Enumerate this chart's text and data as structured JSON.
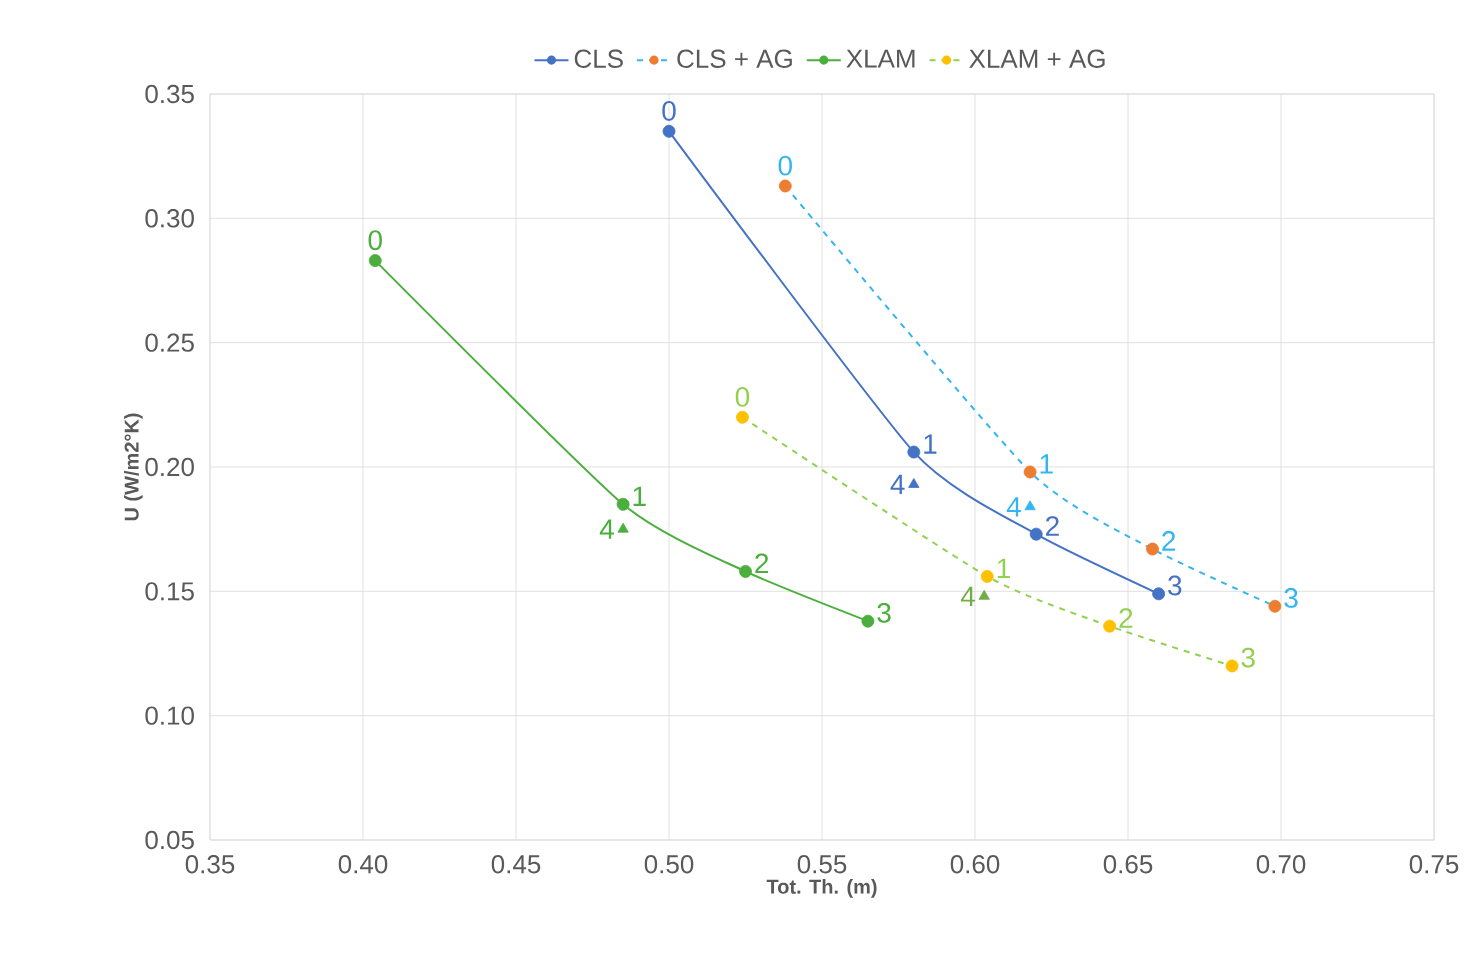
{
  "chart_data": {
    "type": "line",
    "xlabel": "Tot. Th. (m)",
    "ylabel": "U (W/m2°K)",
    "xlim": [
      0.35,
      0.75
    ],
    "xticks": [
      {
        "value": 0.35,
        "label": "0.35"
      },
      {
        "value": 0.4,
        "label": "0.40"
      },
      {
        "value": 0.45,
        "label": "0.45"
      },
      {
        "value": 0.5,
        "label": "0.50"
      },
      {
        "value": 0.55,
        "label": "0.55"
      },
      {
        "value": 0.6,
        "label": "0.60"
      },
      {
        "value": 0.65,
        "label": "0.65"
      },
      {
        "value": 0.7,
        "label": "0.70"
      },
      {
        "value": 0.75,
        "label": "0.75"
      }
    ],
    "ylim": [
      0.05,
      0.35
    ],
    "yticks": [
      {
        "value": 0.05,
        "label": "0.05"
      },
      {
        "value": 0.1,
        "label": "0.10"
      },
      {
        "value": 0.15,
        "label": "0.15"
      },
      {
        "value": 0.2,
        "label": "0.20"
      },
      {
        "value": 0.25,
        "label": "0.25"
      },
      {
        "value": 0.3,
        "label": "0.30"
      },
      {
        "value": 0.35,
        "label": "0.35"
      }
    ],
    "grid": true,
    "legend": "top",
    "series": [
      {
        "name": "CLS",
        "marker": "circle",
        "line_style": "solid",
        "color": "#4472c4",
        "colors": [
          "#4472c4",
          "#4472c4",
          "#4472c4",
          "#4472c4"
        ],
        "x": [
          0.5,
          0.58,
          0.62,
          0.66
        ],
        "values": [
          0.335,
          0.206,
          0.173,
          0.149
        ]
      },
      {
        "name": "CLS + AG",
        "marker": "circle",
        "line_style": "dashed",
        "color": "#33b5f0",
        "colors": [
          "#ed7d31",
          "#ed7d31",
          "#ed7d31",
          "#ed7d31"
        ],
        "x": [
          0.538,
          0.618,
          0.658,
          0.698
        ],
        "values": [
          0.313,
          0.198,
          0.167,
          0.144
        ]
      },
      {
        "name": "XLAM",
        "marker": "circle",
        "line_style": "solid",
        "color": "#4aaf3c",
        "colors": [
          "#4aaf3c",
          "#4aaf3c",
          "#4aaf3c",
          "#4aaf3c"
        ],
        "x": [
          0.404,
          0.485,
          0.525,
          0.565
        ],
        "values": [
          0.283,
          0.185,
          0.158,
          0.138
        ]
      },
      {
        "name": "XLAM + AG",
        "marker": "circle",
        "line_style": "dashed",
        "color": "#92d050",
        "colors": [
          "#ffc000",
          "#ffc000",
          "#ffc000",
          "#ffc000"
        ],
        "x": [
          0.524,
          0.604,
          0.644,
          0.684
        ],
        "values": [
          0.22,
          0.156,
          0.136,
          0.12
        ]
      },
      {
        "type": "scatter",
        "marker": "triangle",
        "color": "#4472c4",
        "x": [
          0.58
        ],
        "values": [
          0.193
        ]
      },
      {
        "type": "scatter",
        "marker": "triangle",
        "color": "#33b5f0",
        "x": [
          0.618
        ],
        "values": [
          0.184
        ]
      },
      {
        "type": "scatter",
        "marker": "triangle",
        "color": "#4aaf3c",
        "x": [
          0.485
        ],
        "values": [
          0.175
        ]
      },
      {
        "type": "scatter",
        "marker": "triangle",
        "color": "#70ad47",
        "x": [
          0.603
        ],
        "values": [
          0.148
        ]
      }
    ],
    "annotations": [
      {
        "text": "0",
        "x": 0.5,
        "y": 0.335
      },
      {
        "text": "1",
        "x": 0.58,
        "y": 0.206
      },
      {
        "text": "2",
        "x": 0.62,
        "y": 0.173
      },
      {
        "text": "3",
        "x": 0.66,
        "y": 0.149
      },
      {
        "text": "0",
        "x": 0.538,
        "y": 0.313
      },
      {
        "text": "1",
        "x": 0.618,
        "y": 0.198
      },
      {
        "text": "2",
        "x": 0.658,
        "y": 0.167
      },
      {
        "text": "3",
        "x": 0.698,
        "y": 0.144
      },
      {
        "text": "0",
        "x": 0.404,
        "y": 0.283
      },
      {
        "text": "1",
        "x": 0.485,
        "y": 0.185
      },
      {
        "text": "2",
        "x": 0.525,
        "y": 0.158
      },
      {
        "text": "3",
        "x": 0.565,
        "y": 0.138
      },
      {
        "text": "0",
        "x": 0.524,
        "y": 0.22
      },
      {
        "text": "1",
        "x": 0.604,
        "y": 0.156
      },
      {
        "text": "2",
        "x": 0.644,
        "y": 0.136
      },
      {
        "text": "3",
        "x": 0.684,
        "y": 0.12
      },
      {
        "text": "4",
        "x": 0.58,
        "y": 0.193
      },
      {
        "text": "4",
        "x": 0.618,
        "y": 0.184
      },
      {
        "text": "4",
        "x": 0.485,
        "y": 0.175
      },
      {
        "text": "4",
        "x": 0.603,
        "y": 0.148
      }
    ]
  }
}
